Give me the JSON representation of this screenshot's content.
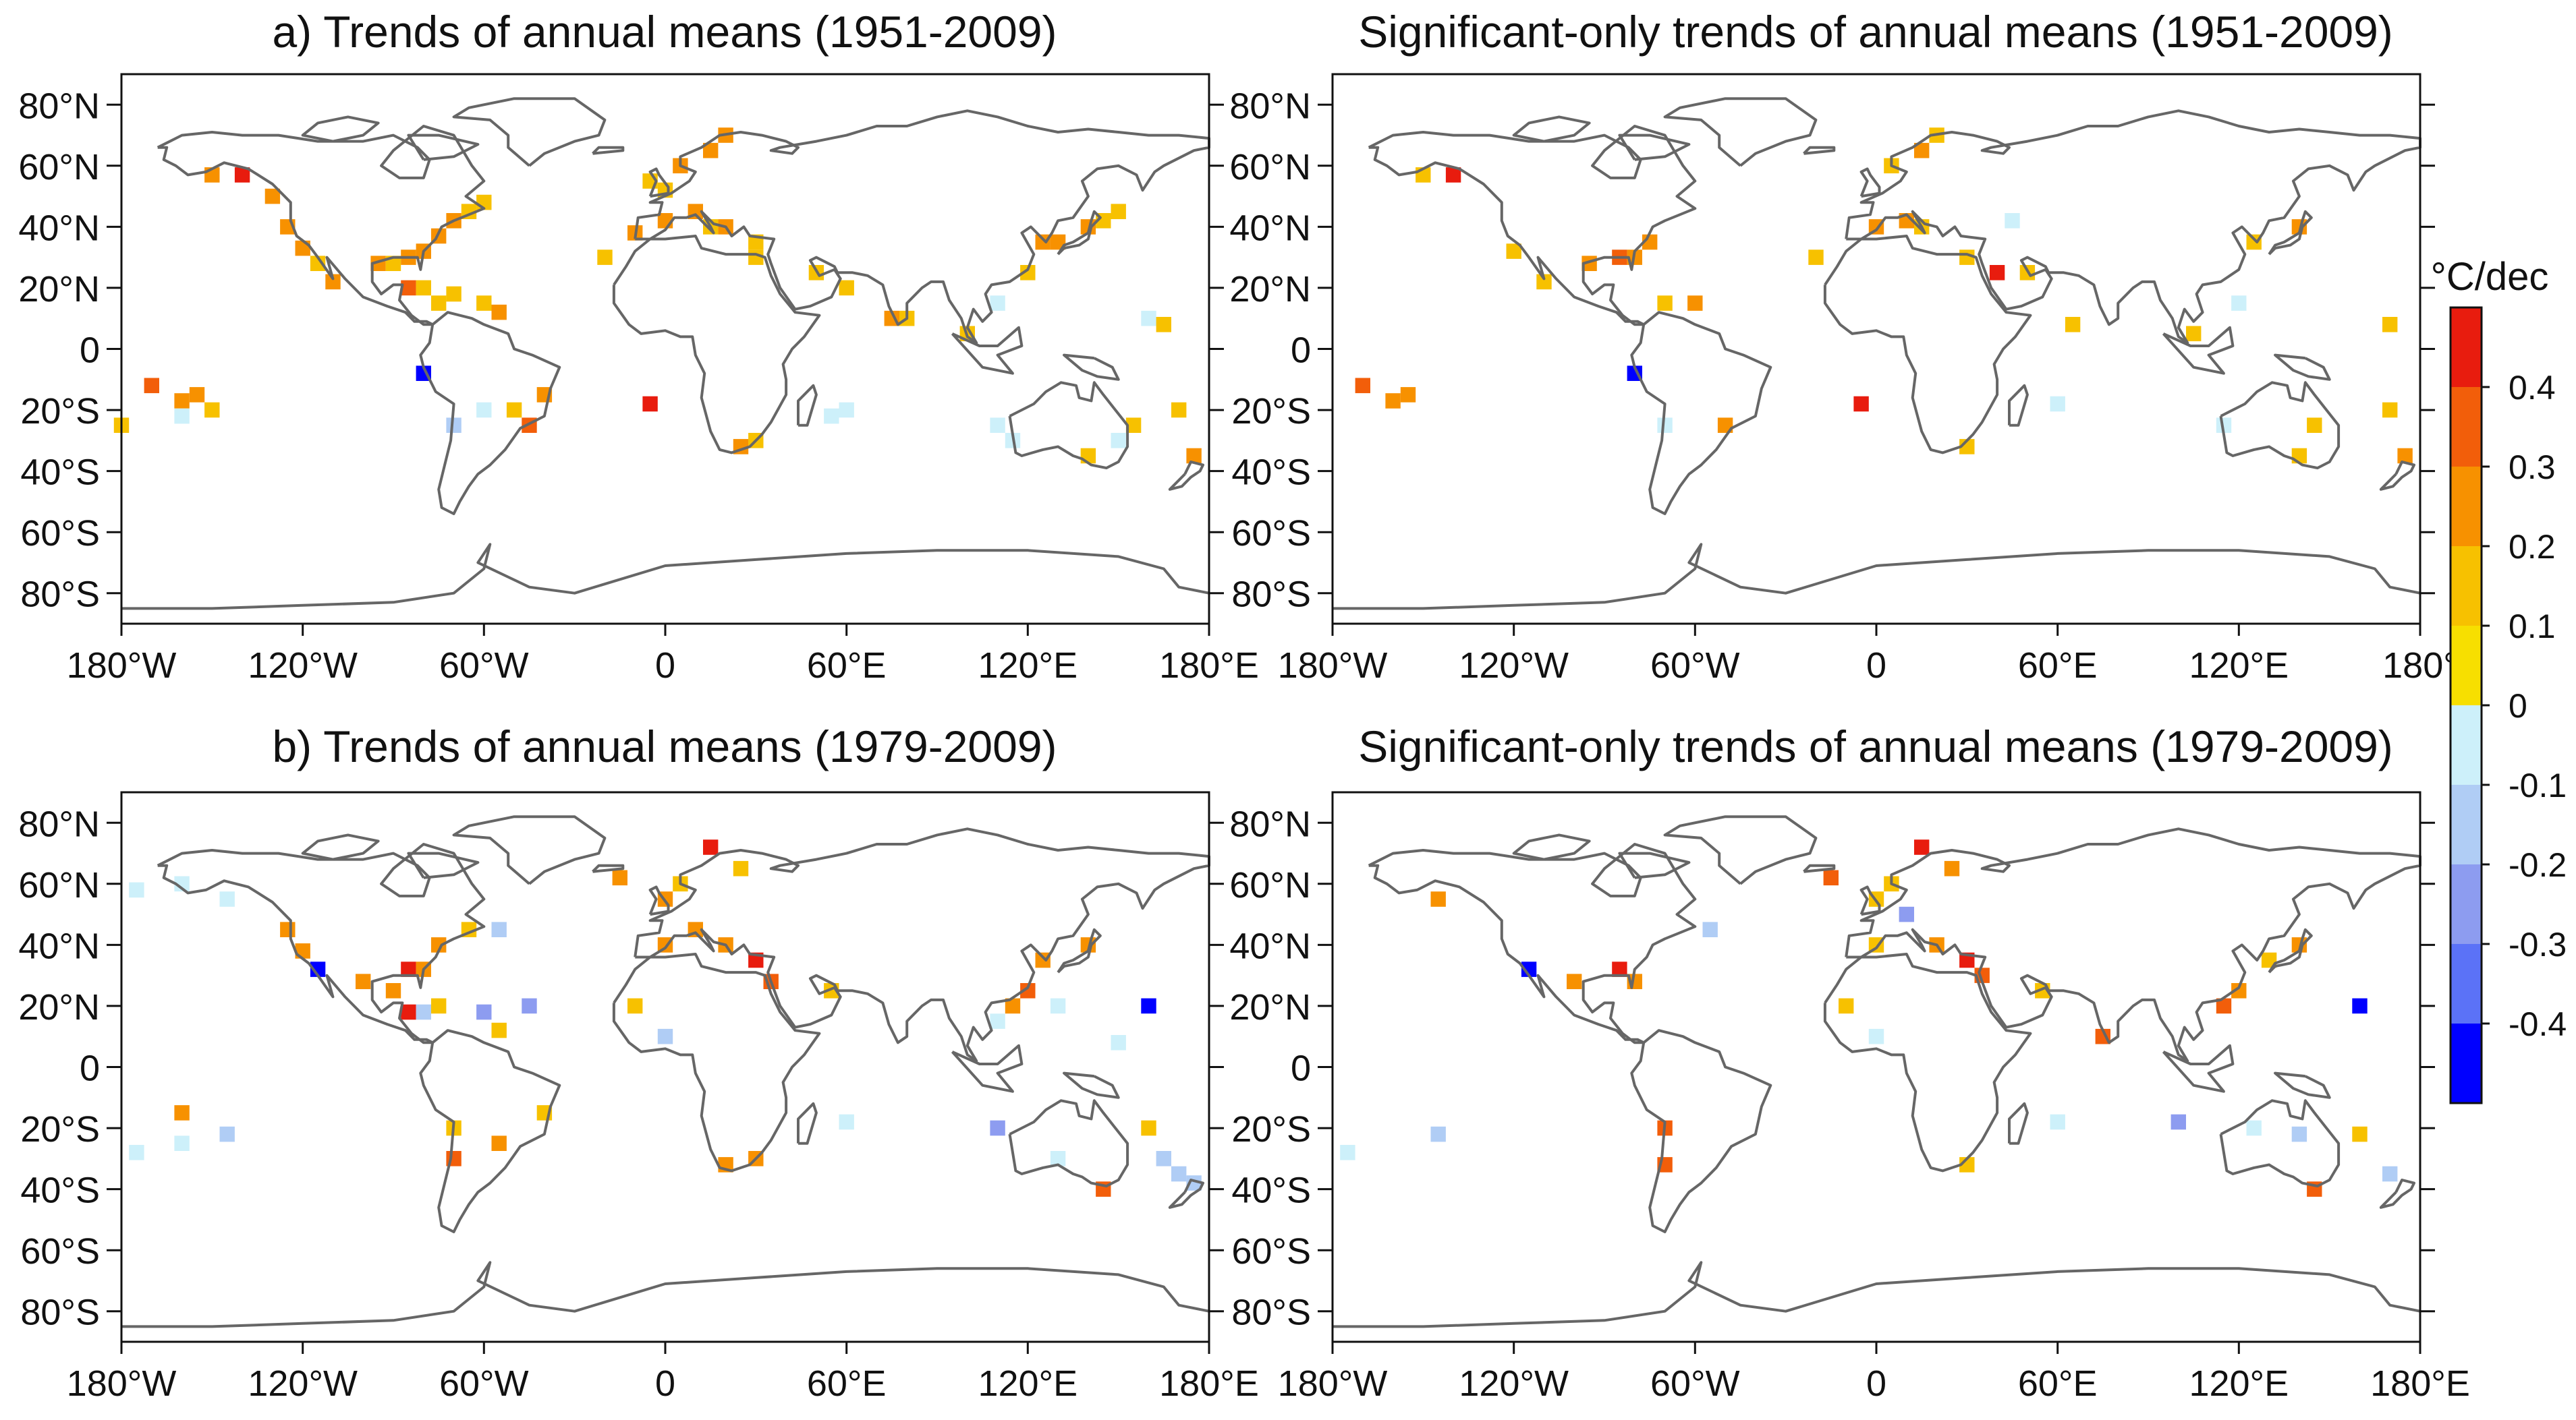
{
  "figure": {
    "panels": [
      {
        "id": "a_left",
        "title": "a) Trends of annual means (1951-2009)",
        "row": 0,
        "col": 0
      },
      {
        "id": "a_right",
        "title": "Significant-only trends of annual means (1951-2009)",
        "row": 0,
        "col": 1
      },
      {
        "id": "b_left",
        "title": "b) Trends of annual means (1979-2009)",
        "row": 1,
        "col": 0
      },
      {
        "id": "b_right",
        "title": "Significant-only trends of annual means (1979-2009)",
        "row": 1,
        "col": 1
      }
    ],
    "lat_ticks": [
      {
        "value": 80,
        "label": "80°N"
      },
      {
        "value": 60,
        "label": "60°N"
      },
      {
        "value": 40,
        "label": "40°N"
      },
      {
        "value": 20,
        "label": "20°N"
      },
      {
        "value": 0,
        "label": "0"
      },
      {
        "value": -20,
        "label": "20°S"
      },
      {
        "value": -40,
        "label": "40°S"
      },
      {
        "value": -60,
        "label": "60°S"
      },
      {
        "value": -80,
        "label": "80°S"
      }
    ],
    "lon_ticks": [
      {
        "value": -180,
        "label": "180°W"
      },
      {
        "value": -120,
        "label": "120°W"
      },
      {
        "value": -60,
        "label": "60°W"
      },
      {
        "value": 0,
        "label": "0"
      },
      {
        "value": 60,
        "label": "60°E"
      },
      {
        "value": 120,
        "label": "120°E"
      },
      {
        "value": 180,
        "label": "180°E"
      }
    ],
    "lon_ticks_top_right_last": "180°",
    "lat_range": [
      -90,
      90
    ],
    "lon_range": [
      -180,
      180
    ]
  },
  "colorbar": {
    "unit": "°C/dec",
    "tick_labels": [
      "0.4",
      "0.3",
      "0.2",
      "0.1",
      "0",
      "-0.1",
      "-0.2",
      "-0.3",
      "-0.4"
    ],
    "bins": [
      {
        "color": "#0000ff",
        "range": [
          -0.5,
          -0.4
        ]
      },
      {
        "color": "#5b72f7",
        "range": [
          -0.4,
          -0.3
        ]
      },
      {
        "color": "#8d9cf0",
        "range": [
          -0.3,
          -0.2
        ]
      },
      {
        "color": "#b0cdf5",
        "range": [
          -0.2,
          -0.1
        ]
      },
      {
        "color": "#cdf0fa",
        "range": [
          -0.1,
          0.0
        ]
      },
      {
        "color": "#f7df00",
        "range": [
          0.0,
          0.1
        ]
      },
      {
        "color": "#f7c100",
        "range": [
          0.1,
          0.2
        ]
      },
      {
        "color": "#f79100",
        "range": [
          0.2,
          0.3
        ]
      },
      {
        "color": "#f25e0a",
        "range": [
          0.3,
          0.4
        ]
      },
      {
        "color": "#e81c0e",
        "range": [
          0.4,
          0.5
        ]
      }
    ]
  },
  "chart_data": [
    {
      "type": "heatmap",
      "title": "a) Trends of annual means (1951-2009)",
      "xlabel": "longitude",
      "ylabel": "latitude",
      "units": "°C/dec",
      "cells": [
        [
          -140,
          57,
          0.45
        ],
        [
          -150,
          57,
          0.2
        ],
        [
          -130,
          50,
          0.2
        ],
        [
          -125,
          40,
          0.2
        ],
        [
          -120,
          33,
          0.2
        ],
        [
          -115,
          28,
          0.15
        ],
        [
          -110,
          22,
          0.2
        ],
        [
          -95,
          28,
          0.2
        ],
        [
          -90,
          28,
          0.15
        ],
        [
          -85,
          30,
          0.25
        ],
        [
          -80,
          32,
          0.2
        ],
        [
          -75,
          37,
          0.2
        ],
        [
          -70,
          42,
          0.2
        ],
        [
          -65,
          45,
          0.15
        ],
        [
          -60,
          48,
          0.1
        ],
        [
          -85,
          20,
          0.3
        ],
        [
          -80,
          20,
          0.15
        ],
        [
          -75,
          15,
          0.15
        ],
        [
          -70,
          18,
          0.1
        ],
        [
          -60,
          15,
          0.15
        ],
        [
          -55,
          12,
          0.2
        ],
        [
          -80,
          -8,
          -0.45
        ],
        [
          -170,
          -12,
          0.3
        ],
        [
          -160,
          -17,
          0.2
        ],
        [
          -155,
          -15,
          0.2
        ],
        [
          -160,
          -22,
          -0.05
        ],
        [
          -180,
          -25,
          0.15
        ],
        [
          -150,
          -20,
          0.15
        ],
        [
          -60,
          -20,
          -0.1
        ],
        [
          -70,
          -25,
          -0.15
        ],
        [
          -50,
          -20,
          0.15
        ],
        [
          -45,
          -25,
          0.3
        ],
        [
          -40,
          -15,
          0.2
        ],
        [
          -5,
          -18,
          0.45
        ],
        [
          -20,
          30,
          0.15
        ],
        [
          -10,
          38,
          0.2
        ],
        [
          0,
          42,
          0.2
        ],
        [
          10,
          45,
          0.2
        ],
        [
          15,
          40,
          0.15
        ],
        [
          20,
          40,
          0.2
        ],
        [
          30,
          35,
          0.15
        ],
        [
          5,
          60,
          0.2
        ],
        [
          15,
          65,
          0.2
        ],
        [
          20,
          70,
          0.2
        ],
        [
          -5,
          55,
          0.15
        ],
        [
          0,
          52,
          0.15
        ],
        [
          30,
          30,
          0.15
        ],
        [
          50,
          25,
          0.15
        ],
        [
          60,
          20,
          0.15
        ],
        [
          75,
          10,
          0.2
        ],
        [
          80,
          10,
          0.15
        ],
        [
          100,
          5,
          0.1
        ],
        [
          110,
          15,
          -0.05
        ],
        [
          120,
          25,
          0.15
        ],
        [
          125,
          35,
          0.2
        ],
        [
          130,
          35,
          0.2
        ],
        [
          140,
          40,
          0.25
        ],
        [
          145,
          42,
          0.15
        ],
        [
          150,
          45,
          0.1
        ],
        [
          160,
          10,
          -0.05
        ],
        [
          165,
          8,
          0.15
        ],
        [
          110,
          -25,
          -0.1
        ],
        [
          115,
          -30,
          -0.1
        ],
        [
          140,
          -35,
          0.15
        ],
        [
          150,
          -30,
          -0.1
        ],
        [
          155,
          -25,
          0.15
        ],
        [
          170,
          -20,
          0.15
        ],
        [
          175,
          -35,
          0.25
        ],
        [
          60,
          -20,
          -0.05
        ],
        [
          55,
          -22,
          -0.1
        ],
        [
          30,
          -30,
          0.15
        ],
        [
          25,
          -32,
          0.2
        ]
      ]
    },
    {
      "type": "heatmap",
      "title": "Significant-only trends of annual means (1951-2009)",
      "xlabel": "longitude",
      "ylabel": "latitude",
      "units": "°C/dec",
      "cells": [
        [
          -140,
          57,
          0.45
        ],
        [
          -150,
          57,
          0.15
        ],
        [
          -120,
          32,
          0.15
        ],
        [
          -110,
          22,
          0.15
        ],
        [
          -95,
          28,
          0.2
        ],
        [
          -85,
          30,
          0.3
        ],
        [
          -80,
          30,
          0.2
        ],
        [
          -75,
          35,
          0.2
        ],
        [
          -70,
          15,
          0.15
        ],
        [
          -60,
          15,
          0.2
        ],
        [
          -80,
          -8,
          -0.45
        ],
        [
          -170,
          -12,
          0.3
        ],
        [
          -160,
          -17,
          0.2
        ],
        [
          -155,
          -15,
          0.2
        ],
        [
          -70,
          -25,
          -0.1
        ],
        [
          -50,
          -25,
          0.2
        ],
        [
          -5,
          -18,
          0.45
        ],
        [
          -20,
          30,
          0.15
        ],
        [
          0,
          40,
          0.2
        ],
        [
          10,
          42,
          0.2
        ],
        [
          15,
          40,
          0.15
        ],
        [
          5,
          60,
          0.15
        ],
        [
          15,
          65,
          0.2
        ],
        [
          20,
          70,
          0.15
        ],
        [
          45,
          42,
          -0.05
        ],
        [
          30,
          30,
          0.15
        ],
        [
          40,
          25,
          0.4
        ],
        [
          50,
          25,
          0.15
        ],
        [
          65,
          8,
          0.15
        ],
        [
          105,
          5,
          0.1
        ],
        [
          120,
          15,
          -0.05
        ],
        [
          125,
          35,
          0.15
        ],
        [
          140,
          40,
          0.25
        ],
        [
          170,
          8,
          0.15
        ],
        [
          115,
          -25,
          -0.1
        ],
        [
          145,
          -25,
          0.1
        ],
        [
          140,
          -35,
          0.15
        ],
        [
          170,
          -20,
          0.1
        ],
        [
          175,
          -35,
          0.2
        ],
        [
          60,
          -18,
          -0.05
        ],
        [
          30,
          -32,
          0.15
        ]
      ]
    },
    {
      "type": "heatmap",
      "title": "b) Trends of annual means (1979-2009)",
      "xlabel": "longitude",
      "ylabel": "latitude",
      "units": "°C/dec",
      "cells": [
        [
          -175,
          58,
          -0.05
        ],
        [
          -160,
          60,
          -0.05
        ],
        [
          -145,
          55,
          -0.1
        ],
        [
          -125,
          45,
          0.2
        ],
        [
          -120,
          38,
          0.2
        ],
        [
          -115,
          32,
          -0.45
        ],
        [
          -100,
          28,
          0.25
        ],
        [
          -90,
          25,
          0.2
        ],
        [
          -85,
          32,
          0.45
        ],
        [
          -80,
          32,
          0.2
        ],
        [
          -75,
          40,
          0.2
        ],
        [
          -65,
          45,
          0.15
        ],
        [
          -55,
          45,
          -0.2
        ],
        [
          -85,
          18,
          0.4
        ],
        [
          -80,
          18,
          -0.2
        ],
        [
          -75,
          20,
          0.15
        ],
        [
          -60,
          18,
          -0.25
        ],
        [
          -55,
          12,
          0.15
        ],
        [
          -45,
          20,
          -0.25
        ],
        [
          -160,
          -15,
          0.2
        ],
        [
          -145,
          -22,
          -0.2
        ],
        [
          -160,
          -25,
          -0.05
        ],
        [
          -175,
          -28,
          -0.05
        ],
        [
          -70,
          -20,
          0.15
        ],
        [
          -70,
          -30,
          0.3
        ],
        [
          -55,
          -25,
          0.2
        ],
        [
          -40,
          -15,
          0.15
        ],
        [
          -15,
          62,
          0.2
        ],
        [
          0,
          55,
          0.2
        ],
        [
          5,
          60,
          0.15
        ],
        [
          15,
          72,
          0.45
        ],
        [
          25,
          65,
          0.15
        ],
        [
          10,
          45,
          0.2
        ],
        [
          0,
          40,
          0.2
        ],
        [
          20,
          40,
          0.2
        ],
        [
          30,
          35,
          0.45
        ],
        [
          35,
          28,
          0.3
        ],
        [
          55,
          25,
          0.15
        ],
        [
          -10,
          20,
          0.15
        ],
        [
          0,
          10,
          -0.2
        ],
        [
          30,
          -30,
          0.2
        ],
        [
          20,
          -32,
          0.2
        ],
        [
          60,
          -18,
          -0.05
        ],
        [
          110,
          15,
          -0.05
        ],
        [
          115,
          20,
          0.2
        ],
        [
          120,
          25,
          0.3
        ],
        [
          125,
          35,
          0.2
        ],
        [
          140,
          40,
          0.2
        ],
        [
          130,
          20,
          -0.05
        ],
        [
          160,
          20,
          -0.45
        ],
        [
          150,
          8,
          -0.05
        ],
        [
          110,
          -20,
          -0.25
        ],
        [
          130,
          -30,
          -0.05
        ],
        [
          145,
          -40,
          0.3
        ],
        [
          160,
          -20,
          0.15
        ],
        [
          165,
          -30,
          -0.15
        ],
        [
          170,
          -35,
          -0.2
        ],
        [
          175,
          -38,
          -0.15
        ]
      ]
    },
    {
      "type": "heatmap",
      "title": "Significant-only trends of annual means (1979-2009)",
      "xlabel": "longitude",
      "ylabel": "latitude",
      "units": "°C/dec",
      "cells": [
        [
          -145,
          55,
          0.2
        ],
        [
          -115,
          32,
          -0.45
        ],
        [
          -100,
          28,
          0.25
        ],
        [
          -85,
          32,
          0.45
        ],
        [
          -80,
          28,
          0.2
        ],
        [
          -55,
          45,
          -0.2
        ],
        [
          -145,
          -22,
          -0.2
        ],
        [
          -175,
          -28,
          -0.05
        ],
        [
          -70,
          -20,
          0.3
        ],
        [
          -70,
          -32,
          0.3
        ],
        [
          -15,
          62,
          0.3
        ],
        [
          0,
          55,
          0.15
        ],
        [
          5,
          60,
          0.15
        ],
        [
          15,
          72,
          0.45
        ],
        [
          25,
          65,
          0.2
        ],
        [
          10,
          50,
          -0.25
        ],
        [
          0,
          40,
          0.15
        ],
        [
          20,
          40,
          0.2
        ],
        [
          30,
          35,
          0.45
        ],
        [
          35,
          30,
          0.3
        ],
        [
          55,
          25,
          0.15
        ],
        [
          -10,
          20,
          0.15
        ],
        [
          0,
          10,
          -0.05
        ],
        [
          30,
          -32,
          0.15
        ],
        [
          60,
          -18,
          -0.05
        ],
        [
          115,
          20,
          0.3
        ],
        [
          120,
          25,
          0.2
        ],
        [
          130,
          35,
          0.15
        ],
        [
          140,
          40,
          0.2
        ],
        [
          160,
          20,
          -0.45
        ],
        [
          75,
          10,
          0.3
        ],
        [
          100,
          -18,
          -0.25
        ],
        [
          125,
          -20,
          -0.05
        ],
        [
          140,
          -22,
          -0.15
        ],
        [
          145,
          -40,
          0.3
        ],
        [
          160,
          -22,
          0.15
        ],
        [
          170,
          -35,
          -0.15
        ]
      ]
    }
  ]
}
